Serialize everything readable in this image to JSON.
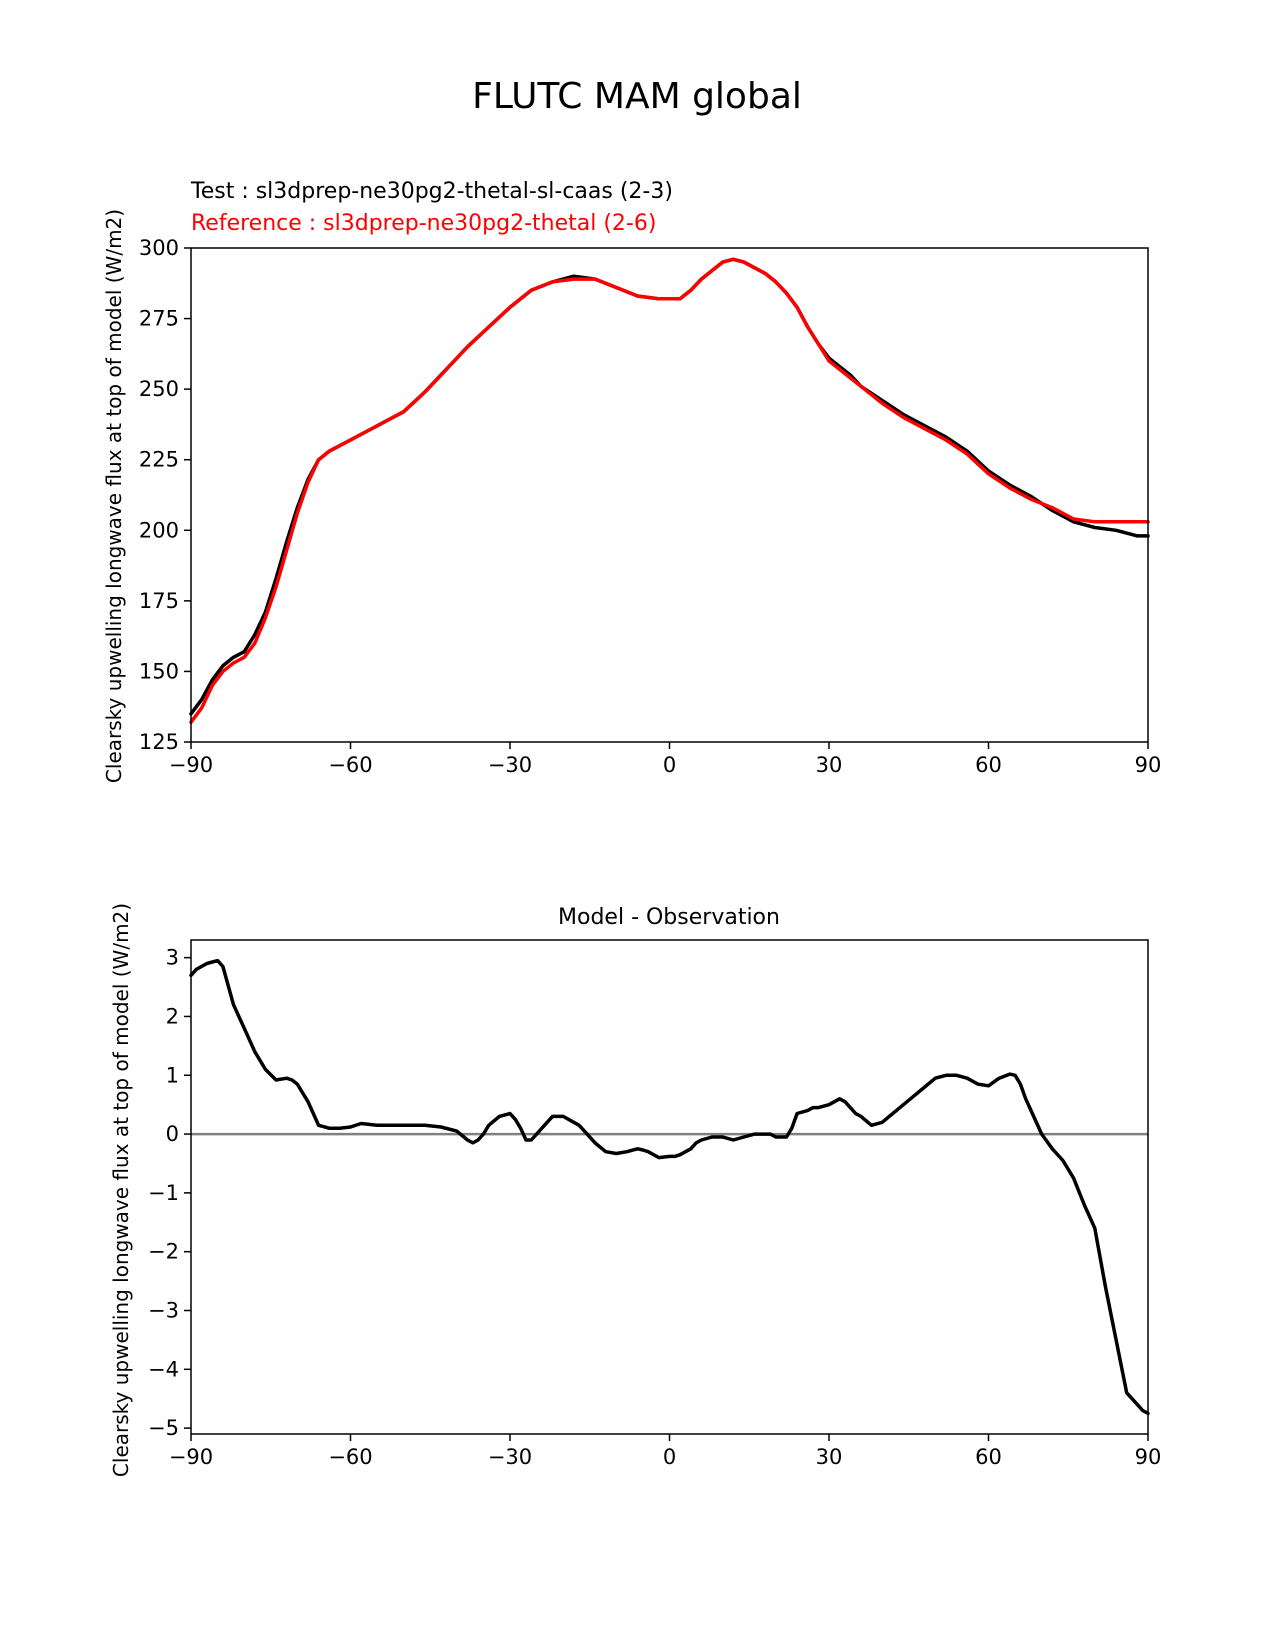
{
  "figure_title": "FLUTC MAM global",
  "colors": {
    "test": "#000000",
    "reference": "#ff0000",
    "zero_line": "#808080",
    "axes": "#000000"
  },
  "chart_data": [
    {
      "type": "line",
      "title_lines": [
        {
          "text": "Test : sl3dprep-ne30pg2-thetal-sl-caas (2-3)",
          "color": "#000000"
        },
        {
          "text": "Reference : sl3dprep-ne30pg2-thetal (2-6)",
          "color": "#ff0000"
        }
      ],
      "ylabel": "Clearsky upwelling longwave flux at top of model (W/m2)",
      "xlabel": "",
      "xlim": [
        -90,
        90
      ],
      "ylim": [
        125,
        300
      ],
      "xticks": [
        -90,
        -60,
        -30,
        0,
        30,
        60,
        90
      ],
      "xtick_labels": [
        "−90",
        "−60",
        "−30",
        "0",
        "30",
        "60",
        "90"
      ],
      "yticks": [
        125,
        150,
        175,
        200,
        225,
        250,
        275,
        300
      ],
      "ytick_labels": [
        "125",
        "150",
        "175",
        "200",
        "225",
        "250",
        "275",
        "300"
      ],
      "grid": false,
      "series": [
        {
          "color": "#000000",
          "x": [
            -90,
            -88,
            -86,
            -84,
            -82,
            -80,
            -78,
            -76,
            -74,
            -72,
            -70,
            -68,
            -66,
            -64,
            -62,
            -60,
            -57,
            -54,
            -50,
            -46,
            -42,
            -38,
            -34,
            -30,
            -26,
            -22,
            -18,
            -14,
            -10,
            -6,
            -2,
            2,
            4,
            6,
            8,
            10,
            12,
            14,
            16,
            18,
            20,
            22,
            24,
            26,
            28,
            30,
            32,
            34,
            36,
            40,
            44,
            48,
            52,
            56,
            60,
            64,
            68,
            72,
            76,
            80,
            84,
            88,
            90
          ],
          "y": [
            135,
            140,
            147,
            152,
            155,
            157,
            163,
            171,
            183,
            196,
            208,
            218,
            225,
            228,
            230,
            232,
            235,
            238,
            242,
            249,
            257,
            265,
            272,
            279,
            285,
            288,
            290,
            289,
            286,
            283,
            282,
            282,
            285,
            289,
            292,
            295,
            296,
            295,
            293,
            291,
            288,
            284,
            279,
            272,
            266,
            261,
            258,
            255,
            251,
            246,
            241,
            237,
            233,
            228,
            221,
            216,
            212,
            207,
            203,
            201,
            200,
            198,
            198
          ]
        },
        {
          "color": "#ff0000",
          "x": [
            -90,
            -88,
            -86,
            -84,
            -82,
            -80,
            -78,
            -76,
            -74,
            -72,
            -70,
            -68,
            -66,
            -64,
            -62,
            -60,
            -57,
            -54,
            -50,
            -46,
            -42,
            -38,
            -34,
            -30,
            -26,
            -22,
            -18,
            -14,
            -10,
            -6,
            -2,
            2,
            4,
            6,
            8,
            10,
            12,
            14,
            16,
            18,
            20,
            22,
            24,
            26,
            28,
            30,
            32,
            34,
            36,
            40,
            44,
            48,
            52,
            56,
            60,
            64,
            68,
            72,
            76,
            80,
            84,
            88,
            90
          ],
          "y": [
            132,
            137,
            145,
            150,
            153,
            155,
            160,
            169,
            180,
            193,
            206,
            217,
            225,
            228,
            230,
            232,
            235,
            238,
            242,
            249,
            257,
            265,
            272,
            279,
            285,
            288,
            289,
            289,
            286,
            283,
            282,
            282,
            285,
            289,
            292,
            295,
            296,
            295,
            293,
            291,
            288,
            284,
            279,
            272,
            266,
            260,
            257,
            254,
            251,
            245,
            240,
            236,
            232,
            227,
            220,
            215,
            211,
            208,
            204,
            203,
            203,
            203,
            203
          ]
        }
      ]
    },
    {
      "type": "line",
      "title": "Model - Observation",
      "ylabel": "Clearsky upwelling longwave flux at top of model (W/m2)",
      "xlabel": "",
      "xlim": [
        -90,
        90
      ],
      "ylim": [
        -5.1,
        3.3
      ],
      "xticks": [
        -90,
        -60,
        -30,
        0,
        30,
        60,
        90
      ],
      "xtick_labels": [
        "−90",
        "−60",
        "−30",
        "0",
        "30",
        "60",
        "90"
      ],
      "yticks": [
        3,
        2,
        1,
        0,
        -1,
        -2,
        -3,
        -4,
        -5
      ],
      "ytick_labels": [
        "3",
        "2",
        "1",
        "0",
        "−1",
        "−2",
        "−3",
        "−4",
        "−5"
      ],
      "grid": false,
      "reference_line_y": 0,
      "series": [
        {
          "color": "#000000",
          "x": [
            -90,
            -89,
            -87,
            -85,
            -84,
            -82,
            -80,
            -78,
            -76,
            -74,
            -72,
            -71,
            -70,
            -68,
            -67,
            -66,
            -64,
            -63,
            -62,
            -60,
            -58,
            -55,
            -53,
            -50,
            -46,
            -43,
            -40,
            -38,
            -37,
            -36,
            -35,
            -34,
            -32,
            -30,
            -29,
            -28,
            -27,
            -26,
            -24,
            -23,
            -22,
            -20,
            -18,
            -17,
            -16,
            -14,
            -12,
            -10,
            -8,
            -6,
            -5,
            -4,
            -2,
            0,
            1,
            2,
            4,
            5,
            6,
            8,
            9,
            10,
            12,
            14,
            16,
            18,
            19,
            20,
            22,
            23,
            24,
            26,
            27,
            28,
            30,
            32,
            33,
            34,
            35,
            36,
            38,
            40,
            42,
            44,
            46,
            48,
            50,
            52,
            54,
            56,
            58,
            60,
            62,
            64,
            65,
            66,
            67,
            68,
            70,
            72,
            74,
            76,
            78,
            80,
            82,
            84,
            86,
            88,
            89,
            90
          ],
          "y": [
            2.7,
            2.8,
            2.9,
            2.95,
            2.85,
            2.2,
            1.8,
            1.4,
            1.1,
            0.92,
            0.95,
            0.92,
            0.85,
            0.55,
            0.35,
            0.15,
            0.1,
            0.1,
            0.1,
            0.12,
            0.18,
            0.15,
            0.15,
            0.15,
            0.15,
            0.12,
            0.05,
            -0.1,
            -0.15,
            -0.1,
            0.0,
            0.15,
            0.3,
            0.35,
            0.25,
            0.1,
            -0.1,
            -0.1,
            0.1,
            0.2,
            0.3,
            0.3,
            0.2,
            0.15,
            0.05,
            -0.15,
            -0.3,
            -0.33,
            -0.3,
            -0.25,
            -0.27,
            -0.3,
            -0.4,
            -0.38,
            -0.38,
            -0.35,
            -0.25,
            -0.15,
            -0.1,
            -0.05,
            -0.05,
            -0.05,
            -0.1,
            -0.05,
            0.0,
            0.0,
            0.0,
            -0.05,
            -0.05,
            0.1,
            0.35,
            0.4,
            0.45,
            0.45,
            0.5,
            0.6,
            0.55,
            0.45,
            0.35,
            0.3,
            0.15,
            0.2,
            0.35,
            0.5,
            0.65,
            0.8,
            0.95,
            1.0,
            1.0,
            0.95,
            0.85,
            0.82,
            0.95,
            1.02,
            1.0,
            0.85,
            0.6,
            0.4,
            0.0,
            -0.25,
            -0.45,
            -0.75,
            -1.2,
            -1.6,
            -2.6,
            -3.5,
            -4.4,
            -4.6,
            -4.7,
            -4.75
          ]
        }
      ]
    }
  ]
}
